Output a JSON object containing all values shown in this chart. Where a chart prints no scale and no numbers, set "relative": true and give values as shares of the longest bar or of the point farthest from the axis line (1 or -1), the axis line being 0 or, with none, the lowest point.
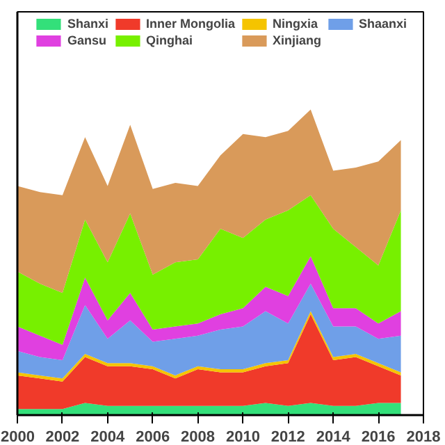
{
  "chart_data": {
    "type": "area",
    "stacked": true,
    "relative": true,
    "legend": "top",
    "grid": false,
    "tick_labels": "x",
    "x": [
      2000,
      2001,
      2002,
      2003,
      2004,
      2005,
      2006,
      2007,
      2008,
      2009,
      2010,
      2011,
      2012,
      2013,
      2014,
      2015,
      2016,
      2017
    ],
    "xlim": [
      2000,
      2018
    ],
    "xticks": [
      2000,
      2002,
      2004,
      2006,
      2008,
      2010,
      2012,
      2014,
      2016,
      2018
    ],
    "series": [
      {
        "name": "Shanxi",
        "color": "#33e07a",
        "values": [
          0.02,
          0.02,
          0.02,
          0.04,
          0.03,
          0.03,
          0.03,
          0.03,
          0.03,
          0.03,
          0.03,
          0.04,
          0.03,
          0.04,
          0.03,
          0.03,
          0.04,
          0.04
        ]
      },
      {
        "name": "Inner Mongolia",
        "color": "#f03a2a",
        "values": [
          0.11,
          0.1,
          0.09,
          0.15,
          0.13,
          0.13,
          0.12,
          0.09,
          0.12,
          0.11,
          0.11,
          0.12,
          0.14,
          0.29,
          0.15,
          0.16,
          0.12,
          0.09
        ]
      },
      {
        "name": "Ningxia",
        "color": "#f5c400",
        "values": [
          0.01,
          0.01,
          0.01,
          0.01,
          0.01,
          0.01,
          0.01,
          0.01,
          0.01,
          0.01,
          0.01,
          0.01,
          0.01,
          0.01,
          0.01,
          0.01,
          0.01,
          0.01
        ]
      },
      {
        "name": "Shaanxi",
        "color": "#6f9fe8",
        "values": [
          0.07,
          0.06,
          0.06,
          0.16,
          0.08,
          0.14,
          0.08,
          0.12,
          0.1,
          0.13,
          0.14,
          0.17,
          0.12,
          0.09,
          0.1,
          0.09,
          0.08,
          0.12
        ]
      },
      {
        "name": "Gansu",
        "color": "#e040e0",
        "values": [
          0.08,
          0.07,
          0.05,
          0.09,
          0.06,
          0.09,
          0.04,
          0.04,
          0.04,
          0.05,
          0.06,
          0.08,
          0.09,
          0.09,
          0.06,
          0.06,
          0.05,
          0.08
        ]
      },
      {
        "name": "Qinghai",
        "color": "#77f000",
        "values": [
          0.18,
          0.17,
          0.17,
          0.19,
          0.19,
          0.26,
          0.18,
          0.21,
          0.21,
          0.28,
          0.23,
          0.22,
          0.28,
          0.2,
          0.26,
          0.2,
          0.19,
          0.33
        ]
      },
      {
        "name": "Xinjiang",
        "color": "#d99a5a",
        "values": [
          0.28,
          0.3,
          0.32,
          0.27,
          0.25,
          0.29,
          0.28,
          0.26,
          0.24,
          0.24,
          0.34,
          0.27,
          0.26,
          0.28,
          0.19,
          0.26,
          0.34,
          0.23
        ]
      }
    ]
  }
}
